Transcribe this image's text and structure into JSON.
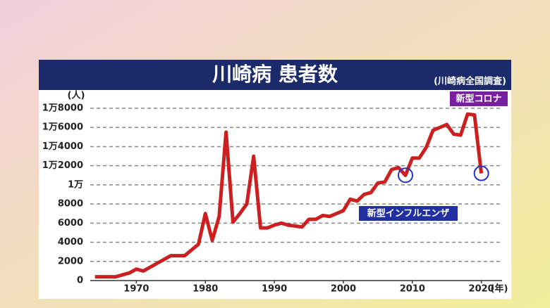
{
  "chart_data": {
    "type": "line",
    "title": "川崎病 患者数",
    "subtitle": "(川崎病全国調査)",
    "y_unit": "(人)",
    "x_unit": "(年)",
    "annotations": [
      "新型コロナ",
      "新型インフルエンザ"
    ],
    "x": [
      1964,
      1965,
      1966,
      1967,
      1968,
      1969,
      1970,
      1971,
      1972,
      1973,
      1974,
      1975,
      1976,
      1977,
      1978,
      1979,
      1980,
      1981,
      1982,
      1983,
      1984,
      1985,
      1986,
      1987,
      1988,
      1989,
      1990,
      1991,
      1992,
      1993,
      1994,
      1995,
      1996,
      1997,
      1998,
      1999,
      2000,
      2001,
      2002,
      2003,
      2004,
      2005,
      2006,
      2007,
      2008,
      2009,
      2010,
      2011,
      2012,
      2013,
      2014,
      2015,
      2016,
      2017,
      2018,
      2019,
      2020
    ],
    "values": [
      400,
      400,
      400,
      400,
      600,
      800,
      1200,
      1000,
      1400,
      1800,
      2200,
      2600,
      2600,
      2600,
      3200,
      3800,
      7000,
      4200,
      6700,
      15500,
      6100,
      7000,
      8000,
      13000,
      5500,
      5500,
      5800,
      6000,
      5800,
      5700,
      5600,
      6400,
      6400,
      6800,
      6700,
      7000,
      7300,
      8500,
      8300,
      9000,
      9200,
      10200,
      10300,
      11600,
      11800,
      11000,
      12800,
      12800,
      13900,
      15700,
      16000,
      16300,
      15300,
      15200,
      17400,
      17300,
      11200
    ],
    "color": "#cc1f1f",
    "xlim": [
      1962.5,
      2023
    ],
    "xticks": [
      1970,
      1980,
      1990,
      2000,
      2010,
      2020
    ],
    "ylim": [
      0,
      18000
    ],
    "yticks": [
      0,
      2000,
      4000,
      6000,
      8000,
      {
        "value": 10000,
        "label": "1万"
      },
      {
        "value": 12000,
        "label": "1万2000"
      },
      {
        "value": 14000,
        "label": "1万4000"
      },
      {
        "value": 16000,
        "label": "1万6000"
      },
      {
        "value": 18000,
        "label": "1万8000"
      }
    ],
    "grid": true
  }
}
